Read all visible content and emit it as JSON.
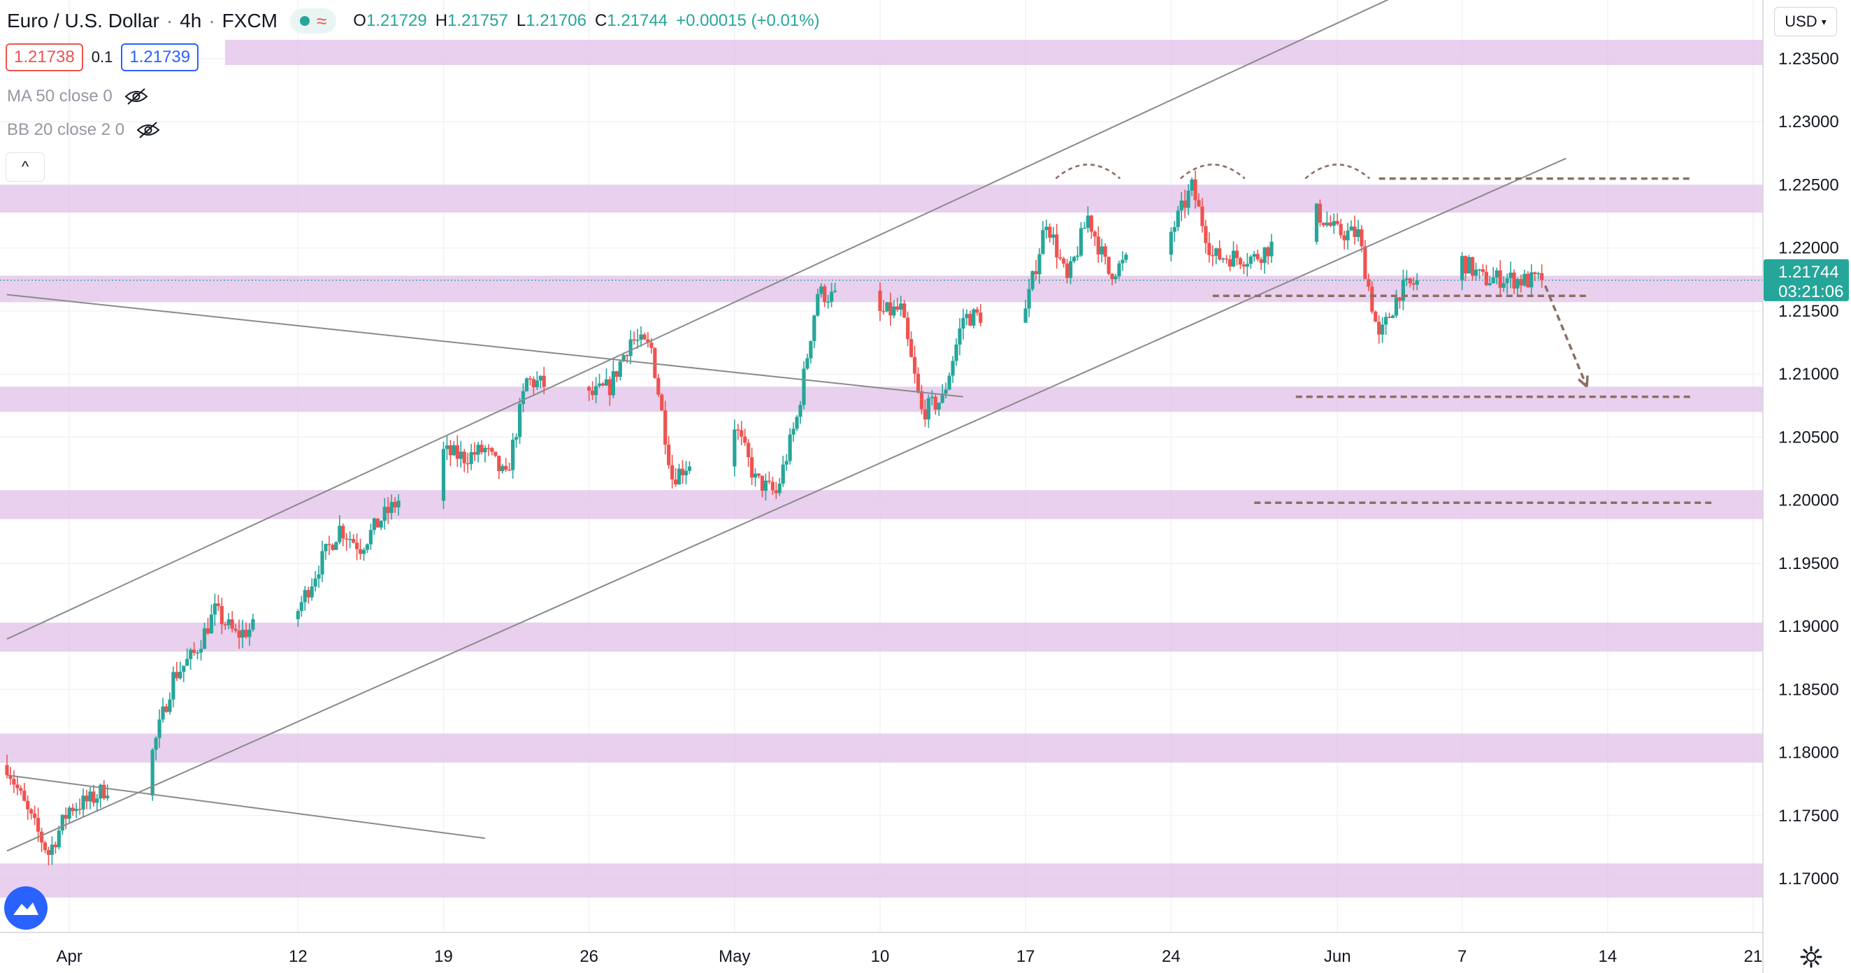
{
  "header": {
    "symbol": "Euro / U.S. Dollar",
    "interval": "4h",
    "exchange": "FXCM",
    "ohlc": {
      "o_label": "O",
      "o": "1.21729",
      "h_label": "H",
      "h": "1.21757",
      "l_label": "L",
      "l": "1.21706",
      "c_label": "C",
      "c": "1.21744",
      "change": "+0.00015 (+0.01%)"
    }
  },
  "trade": {
    "sell": "1.21738",
    "spread": "0.1",
    "buy": "1.21739"
  },
  "indicators": [
    {
      "label": "MA 50 close 0"
    },
    {
      "label": "BB 20 close 2 0"
    }
  ],
  "currency_button": "USD",
  "collapse_button": "^",
  "price_tag": {
    "price": "1.21744",
    "countdown": "03:21:06"
  },
  "colors": {
    "up": "#26a69a",
    "down": "#ef5350",
    "zone": "#e1bee7",
    "trendline": "#8a8a8a",
    "dashed": "#8d6e63"
  },
  "chart_data": {
    "type": "candlestick",
    "title": "Euro / U.S. Dollar",
    "ylim": [
      1.166,
      1.238
    ],
    "y_ticks": [
      "1.23500",
      "1.23000",
      "1.22500",
      "1.22000",
      "1.21500",
      "1.21000",
      "1.20500",
      "1.20000",
      "1.19500",
      "1.19000",
      "1.18500",
      "1.18000",
      "1.17500",
      "1.17000"
    ],
    "y_tick_values": [
      1.235,
      1.23,
      1.225,
      1.22,
      1.215,
      1.21,
      1.205,
      1.2,
      1.195,
      1.19,
      1.185,
      1.18,
      1.175,
      1.17
    ],
    "x_ticks": [
      "Apr",
      "12",
      "19",
      "26",
      "May",
      "10",
      "17",
      "24",
      "Jun",
      "7",
      "14",
      "21"
    ],
    "x_tick_dates": [
      "2021-04-01",
      "2021-04-12",
      "2021-04-19",
      "2021-04-26",
      "2021-05-03",
      "2021-05-10",
      "2021-05-17",
      "2021-05-24",
      "2021-06-01",
      "2021-06-07",
      "2021-06-14",
      "2021-06-21"
    ],
    "date_range": [
      "2021-03-29",
      "2021-06-21"
    ],
    "last_price": 1.21744,
    "grid": true,
    "path": [
      [
        "2021-03-29",
        1.179
      ],
      [
        "2021-03-30",
        1.1752
      ],
      [
        "2021-03-31",
        1.172
      ],
      [
        "2021-04-01",
        1.1756
      ],
      [
        "2021-04-02",
        1.1762
      ],
      [
        "2021-04-05",
        1.18
      ],
      [
        "2021-04-06",
        1.186
      ],
      [
        "2021-04-07",
        1.1878
      ],
      [
        "2021-04-08",
        1.1912
      ],
      [
        "2021-04-09",
        1.1893
      ],
      [
        "2021-04-12",
        1.1913
      ],
      [
        "2021-04-13",
        1.1948
      ],
      [
        "2021-04-14",
        1.1978
      ],
      [
        "2021-04-15",
        1.1963
      ],
      [
        "2021-04-16",
        1.1985
      ],
      [
        "2021-04-19",
        1.2038
      ],
      [
        "2021-04-20",
        1.2034
      ],
      [
        "2021-04-21",
        1.204
      ],
      [
        "2021-04-22",
        1.2017
      ],
      [
        "2021-04-23",
        1.2095
      ],
      [
        "2021-04-26",
        1.2082
      ],
      [
        "2021-04-27",
        1.209
      ],
      [
        "2021-04-28",
        1.2128
      ],
      [
        "2021-04-29",
        1.212
      ],
      [
        "2021-04-30",
        1.2018
      ],
      [
        "2021-05-03",
        1.206
      ],
      [
        "2021-05-04",
        1.2016
      ],
      [
        "2021-05-05",
        1.2005
      ],
      [
        "2021-05-06",
        1.2065
      ],
      [
        "2021-05-07",
        1.2165
      ],
      [
        "2021-05-10",
        1.2148
      ],
      [
        "2021-05-11",
        1.2151
      ],
      [
        "2021-05-12",
        1.207
      ],
      [
        "2021-05-13",
        1.208
      ],
      [
        "2021-05-14",
        1.2145
      ],
      [
        "2021-05-17",
        1.215
      ],
      [
        "2021-05-18",
        1.2223
      ],
      [
        "2021-05-19",
        1.2173
      ],
      [
        "2021-05-20",
        1.2225
      ],
      [
        "2021-05-21",
        1.218
      ],
      [
        "2021-05-24",
        1.2212
      ],
      [
        "2021-05-25",
        1.2248
      ],
      [
        "2021-05-26",
        1.2193
      ],
      [
        "2021-05-27",
        1.2193
      ],
      [
        "2021-05-28",
        1.2192
      ],
      [
        "2021-05-31",
        1.2228
      ],
      [
        "2021-06-01",
        1.2212
      ],
      [
        "2021-06-02",
        1.2211
      ],
      [
        "2021-06-03",
        1.2127
      ],
      [
        "2021-06-04",
        1.2166
      ],
      [
        "2021-06-07",
        1.219
      ],
      [
        "2021-06-08",
        1.2175
      ],
      [
        "2021-06-09",
        1.2176
      ],
      [
        "2021-06-10",
        1.2174
      ]
    ],
    "zones": [
      [
        1.2345,
        1.2365
      ],
      [
        1.2228,
        1.225
      ],
      [
        1.2157,
        1.2178
      ],
      [
        1.207,
        1.209
      ],
      [
        1.1985,
        1.2008
      ],
      [
        1.188,
        1.1903
      ],
      [
        1.1792,
        1.1815
      ],
      [
        1.1685,
        1.1712
      ]
    ],
    "dashed_levels": [
      {
        "price": 1.2255,
        "from": "2021-06-03",
        "to": "2021-06-18"
      },
      {
        "price": 1.2162,
        "from": "2021-05-26",
        "to": "2021-06-13"
      },
      {
        "price": 1.2082,
        "from": "2021-05-30",
        "to": "2021-06-18"
      },
      {
        "price": 1.1998,
        "from": "2021-05-28",
        "to": "2021-06-19"
      }
    ],
    "trendlines": [
      {
        "from": [
          "2021-03-29",
          1.1722
        ],
        "to": [
          "2021-06-12",
          1.2271
        ]
      },
      {
        "from": [
          "2021-03-29",
          1.189
        ],
        "to": [
          "2021-06-07",
          1.2424
        ]
      },
      {
        "from": [
          "2021-03-29",
          1.2163
        ],
        "to": [
          "2021-05-14",
          1.2082
        ]
      },
      {
        "from": [
          "2021-03-29",
          1.1782
        ],
        "to": [
          "2021-04-21",
          1.1732
        ]
      }
    ],
    "arc_peaks": [
      "2021-05-20",
      "2021-05-26",
      "2021-06-01"
    ],
    "projection": {
      "from": [
        "2021-06-11",
        1.217
      ],
      "to": [
        "2021-06-13",
        1.209
      ]
    }
  }
}
